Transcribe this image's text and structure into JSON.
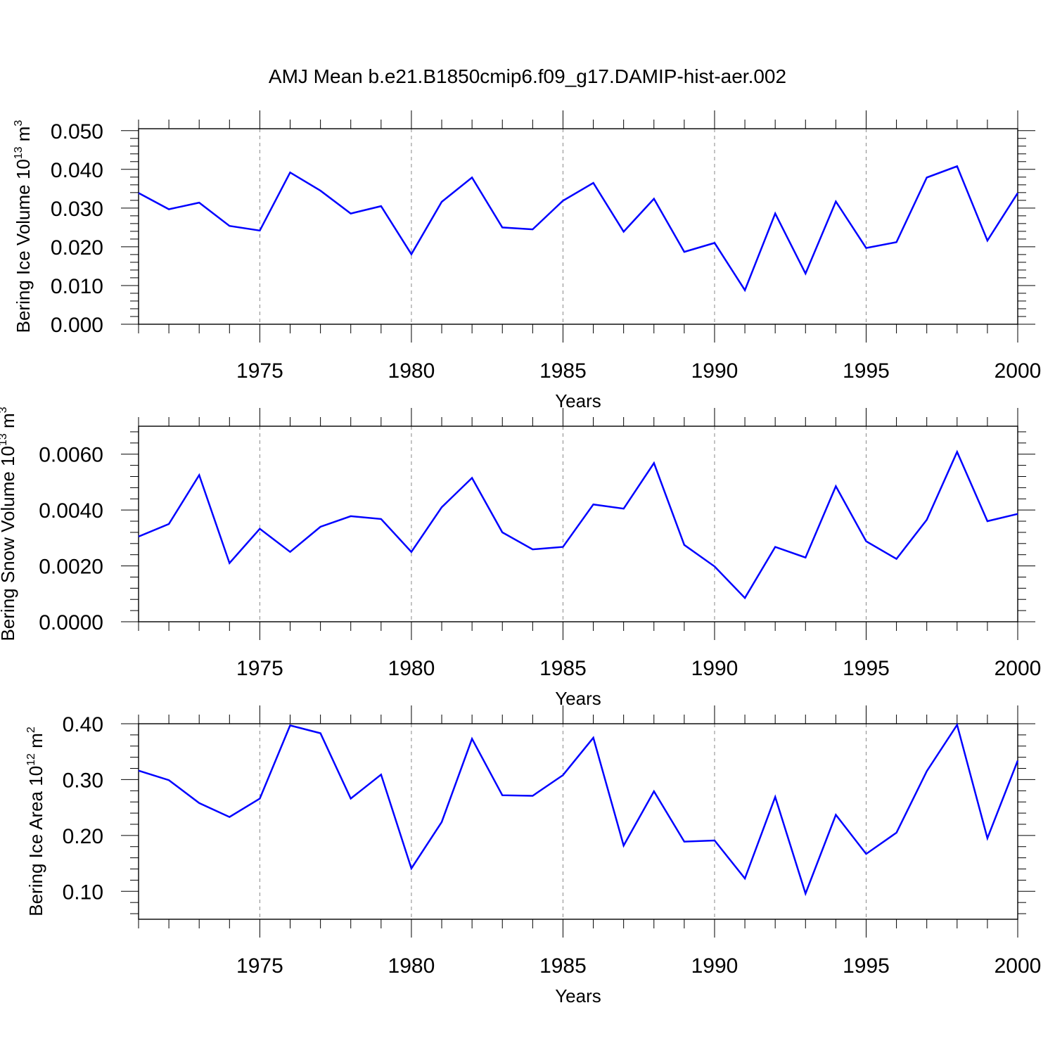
{
  "title": "AMJ Mean b.e21.B1850cmip6.f09_g17.DAMIP-hist-aer.002",
  "line_color": "#0000ff",
  "chart_data": [
    {
      "type": "line",
      "ylabel": {
        "main": "Bering Ice Volume 10",
        "sup": "13",
        "mid": " m",
        "sup2": "3"
      },
      "xlabel": "Years",
      "xlim": [
        1971,
        2000
      ],
      "ylim": [
        0,
        0.0505
      ],
      "yticks": [
        0,
        0.01,
        0.02,
        0.03,
        0.04,
        0.05
      ],
      "ytick_labels": [
        "0.000",
        "0.010",
        "0.020",
        "0.030",
        "0.040",
        "0.050"
      ],
      "yminor_step": 0.002,
      "xticks": [
        1975,
        1980,
        1985,
        1990,
        1995,
        2000
      ],
      "xtick_labels": [
        "1975",
        "1980",
        "1985",
        "1990",
        "1995",
        "2000"
      ],
      "x": [
        1971,
        1972,
        1973,
        1974,
        1975,
        1976,
        1977,
        1978,
        1979,
        1980,
        1981,
        1982,
        1983,
        1984,
        1985,
        1986,
        1987,
        1988,
        1989,
        1990,
        1991,
        1992,
        1993,
        1994,
        1995,
        1996,
        1997,
        1998,
        1999,
        2000
      ],
      "values": [
        0.0339,
        0.0297,
        0.0314,
        0.0254,
        0.0242,
        0.0392,
        0.0345,
        0.0286,
        0.0305,
        0.0181,
        0.0316,
        0.0379,
        0.025,
        0.0245,
        0.0319,
        0.0365,
        0.0239,
        0.0324,
        0.0187,
        0.021,
        0.0088,
        0.0286,
        0.0131,
        0.0317,
        0.0197,
        0.0212,
        0.0379,
        0.0408,
        0.0216,
        0.0339
      ]
    },
    {
      "type": "line",
      "ylabel": {
        "main": "Bering Snow Volume 10",
        "sup": "13",
        "mid": " m",
        "sup2": "3"
      },
      "xlabel": "Years",
      "xlim": [
        1971,
        2000
      ],
      "ylim": [
        0,
        0.007
      ],
      "yticks": [
        0,
        0.002,
        0.004,
        0.006
      ],
      "ytick_labels": [
        "0.0000",
        "0.0020",
        "0.0040",
        "0.0060"
      ],
      "yminor_step": 0.0004,
      "xticks": [
        1975,
        1980,
        1985,
        1990,
        1995,
        2000
      ],
      "xtick_labels": [
        "1975",
        "1980",
        "1985",
        "1990",
        "1995",
        "2000"
      ],
      "x": [
        1971,
        1972,
        1973,
        1974,
        1975,
        1976,
        1977,
        1978,
        1979,
        1980,
        1981,
        1982,
        1983,
        1984,
        1985,
        1986,
        1987,
        1988,
        1989,
        1990,
        1991,
        1992,
        1993,
        1994,
        1995,
        1996,
        1997,
        1998,
        1999,
        2000
      ],
      "values": [
        0.00305,
        0.0035,
        0.00525,
        0.0021,
        0.00333,
        0.0025,
        0.0034,
        0.00378,
        0.00368,
        0.0025,
        0.0041,
        0.00515,
        0.0032,
        0.00259,
        0.00268,
        0.0042,
        0.00405,
        0.00568,
        0.00275,
        0.00198,
        0.00085,
        0.00268,
        0.0023,
        0.00485,
        0.00288,
        0.00225,
        0.00365,
        0.00608,
        0.0036,
        0.00386
      ]
    },
    {
      "type": "line",
      "ylabel": {
        "main": "Bering Ice Area 10",
        "sup": "12",
        "mid": " m",
        "sup2": "2"
      },
      "xlabel": "Years",
      "xlim": [
        1971,
        2000
      ],
      "ylim": [
        0.05,
        0.4
      ],
      "yticks": [
        0.1,
        0.2,
        0.3,
        0.4
      ],
      "ytick_labels": [
        "0.10",
        "0.20",
        "0.30",
        "0.40"
      ],
      "yminor_step": 0.02,
      "xticks": [
        1975,
        1980,
        1985,
        1990,
        1995,
        2000
      ],
      "xtick_labels": [
        "1975",
        "1980",
        "1985",
        "1990",
        "1995",
        "2000"
      ],
      "x": [
        1971,
        1972,
        1973,
        1974,
        1975,
        1976,
        1977,
        1978,
        1979,
        1980,
        1981,
        1982,
        1983,
        1984,
        1985,
        1986,
        1987,
        1988,
        1989,
        1990,
        1991,
        1992,
        1993,
        1994,
        1995,
        1996,
        1997,
        1998,
        1999,
        2000
      ],
      "values": [
        0.316,
        0.299,
        0.258,
        0.233,
        0.266,
        0.397,
        0.383,
        0.266,
        0.309,
        0.141,
        0.224,
        0.373,
        0.272,
        0.271,
        0.308,
        0.375,
        0.182,
        0.279,
        0.189,
        0.191,
        0.123,
        0.269,
        0.096,
        0.237,
        0.167,
        0.205,
        0.315,
        0.398,
        0.195,
        0.334
      ]
    }
  ]
}
